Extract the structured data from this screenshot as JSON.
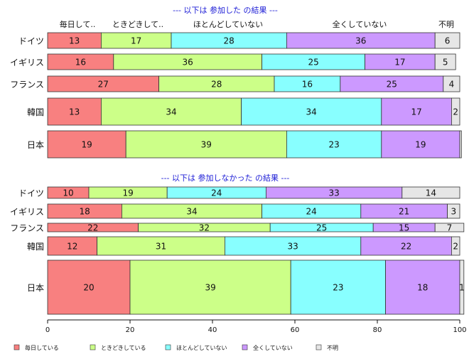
{
  "chart_data": {
    "type": "bar",
    "orientation": "horizontal",
    "stacked": true,
    "xlim": [
      0,
      100
    ],
    "xticks": [
      0,
      20,
      40,
      60,
      80,
      100
    ],
    "series_names": [
      "毎日している",
      "ときどきしている",
      "ほとんどしていない",
      "全くしていない",
      "不明"
    ],
    "top_categories": [
      "毎日して..",
      "ときどきして..",
      "ほとんどしていない",
      "全くしていない",
      "不明"
    ],
    "colors": [
      "#f88080",
      "#ccff88",
      "#88ffff",
      "#cc99ff",
      "#e6e6e6"
    ],
    "panels": [
      {
        "title": "--- 以下は 参加した の結果 ---",
        "rows": [
          {
            "label": "ドイツ",
            "values": [
              13,
              17,
              28,
              36,
              6
            ]
          },
          {
            "label": "イギリス",
            "values": [
              16,
              36,
              25,
              17,
              5
            ]
          },
          {
            "label": "フランス",
            "values": [
              27,
              28,
              16,
              25,
              4
            ]
          },
          {
            "label": "韓国",
            "values": [
              13,
              34,
              34,
              17,
              2
            ]
          },
          {
            "label": "日本",
            "values": [
              19,
              39,
              23,
              19,
              0.4
            ]
          }
        ]
      },
      {
        "title": "--- 以下は 参加しなかった の結果 ---",
        "rows": [
          {
            "label": "ドイツ",
            "values": [
              10,
              19,
              24,
              33,
              14
            ]
          },
          {
            "label": "イギリス",
            "values": [
              18,
              34,
              24,
              21,
              3
            ]
          },
          {
            "label": "フランス",
            "values": [
              22,
              32,
              25,
              15,
              7
            ]
          },
          {
            "label": "韓国",
            "values": [
              12,
              31,
              33,
              22,
              2
            ]
          },
          {
            "label": "日本",
            "values": [
              20,
              39,
              23,
              18,
              1
            ]
          }
        ]
      }
    ]
  }
}
